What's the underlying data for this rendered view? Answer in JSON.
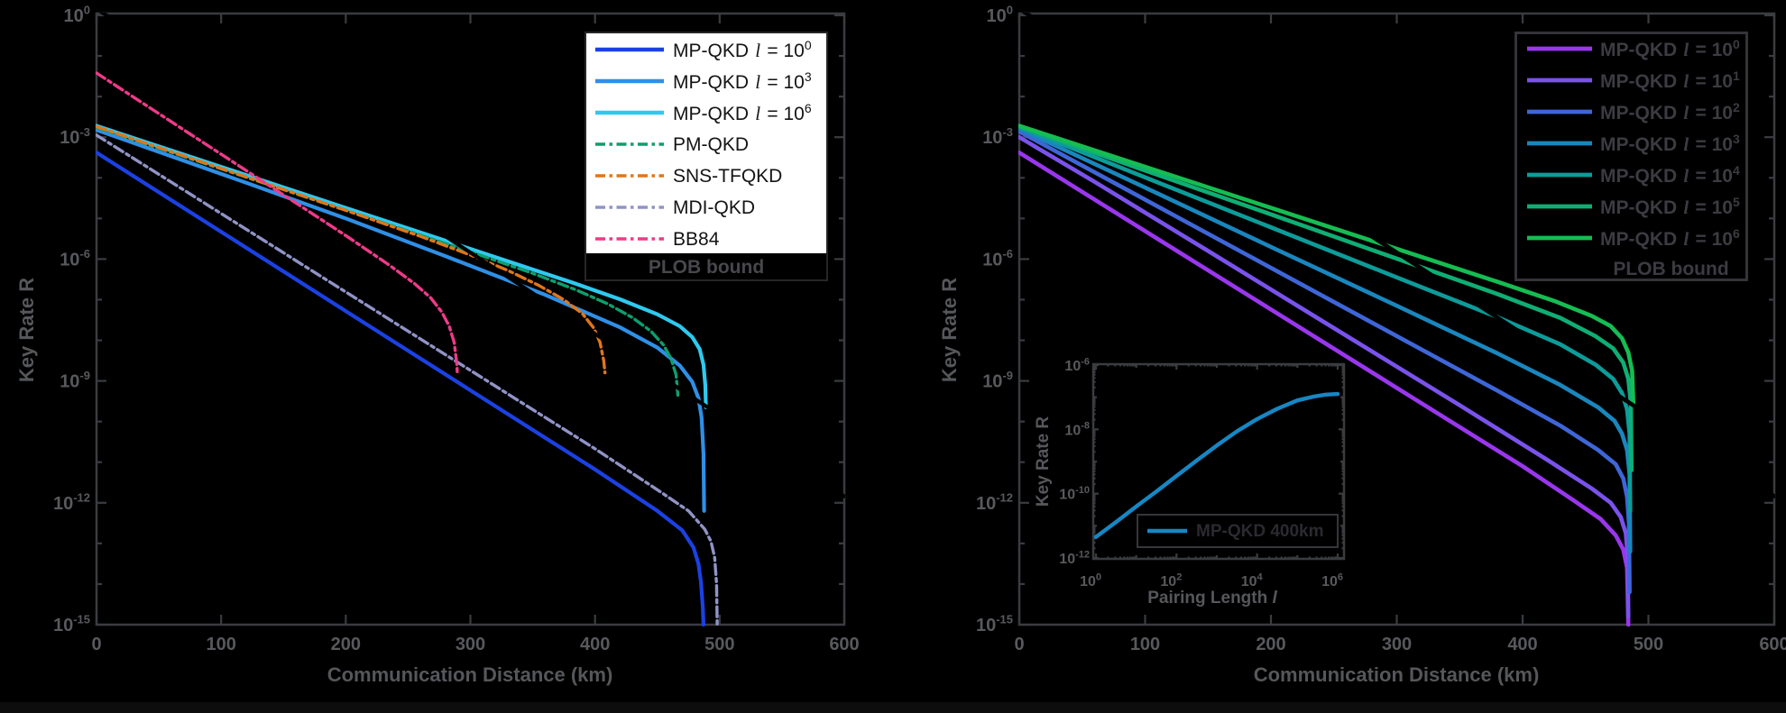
{
  "styles": {
    "background": "#000000",
    "frame_color": "#3a3c40",
    "tick_label_color": "#58595d",
    "axis_label_color": "#56575b",
    "legend_left_bg": "#ffffff",
    "legend_left_text": "#141414",
    "legend_dark_text": "#3b3b42",
    "legend_border_dark": "#333338",
    "plob_text_color": "#47474d"
  },
  "chart_data": [
    {
      "type": "line",
      "id": "left",
      "xlabel": "Communication Distance (km)",
      "ylabel": "Key Rate R",
      "xlim": [
        0,
        600
      ],
      "x_ticks": [
        0,
        100,
        200,
        300,
        400,
        500,
        600
      ],
      "y_scale": "log",
      "ylim_exp": [
        -15,
        0
      ],
      "y_tick_exponents": [
        0,
        -3,
        -6,
        -9,
        -12,
        -15
      ],
      "legend_position": "top-right",
      "series": [
        {
          "label": "MP-QKD",
          "lvar": "l",
          "exp": "0",
          "color": "#1b41e3",
          "style": "solid",
          "points": [
            [
              0,
              -3.38
            ],
            [
              100,
              -5.33
            ],
            [
              200,
              -7.28
            ],
            [
              300,
              -9.23
            ],
            [
              400,
              -11.18
            ],
            [
              450,
              -12.2
            ],
            [
              470,
              -12.68
            ],
            [
              479,
              -13.1
            ],
            [
              483,
              -13.5
            ],
            [
              485,
              -13.95
            ],
            [
              486.5,
              -14.6
            ],
            [
              487,
              -15
            ]
          ]
        },
        {
          "label": "MP-QKD",
          "lvar": "l",
          "exp": "3",
          "color": "#2f8fe6",
          "style": "solid",
          "points": [
            [
              0,
              -2.82
            ],
            [
              60,
              -3.47
            ],
            [
              120,
              -4.12
            ],
            [
              200,
              -5.0
            ],
            [
              280,
              -5.93
            ],
            [
              360,
              -6.88
            ],
            [
              420,
              -7.68
            ],
            [
              450,
              -8.18
            ],
            [
              468,
              -8.62
            ],
            [
              478,
              -9.02
            ],
            [
              483,
              -9.42
            ],
            [
              485.5,
              -9.9
            ],
            [
              487,
              -10.8
            ],
            [
              487.5,
              -12.2
            ]
          ]
        },
        {
          "label": "MP-QKD",
          "lvar": "l",
          "exp": "6",
          "color": "#2fc9ef",
          "style": "solid",
          "points": [
            [
              0,
              -2.72
            ],
            [
              100,
              -3.73
            ],
            [
              200,
              -4.74
            ],
            [
              300,
              -5.75
            ],
            [
              380,
              -6.56
            ],
            [
              420,
              -6.99
            ],
            [
              450,
              -7.36
            ],
            [
              468,
              -7.65
            ],
            [
              478,
              -7.92
            ],
            [
              484,
              -8.22
            ],
            [
              487,
              -8.6
            ],
            [
              488.5,
              -9.1
            ],
            [
              489,
              -9.65
            ]
          ]
        },
        {
          "label": "PM-QKD",
          "color": "#0f9e6d",
          "style": "dashdot",
          "points": [
            [
              0,
              -2.76
            ],
            [
              100,
              -3.78
            ],
            [
              200,
              -4.8
            ],
            [
              300,
              -5.82
            ],
            [
              350,
              -6.35
            ],
            [
              385,
              -6.76
            ],
            [
              410,
              -7.1
            ],
            [
              430,
              -7.44
            ],
            [
              445,
              -7.78
            ],
            [
              455,
              -8.12
            ],
            [
              461,
              -8.45
            ],
            [
              465,
              -8.85
            ],
            [
              466.5,
              -9.35
            ]
          ]
        },
        {
          "label": "SNS-TFQKD",
          "color": "#e0761b",
          "style": "dashdot",
          "points": [
            [
              0,
              -2.74
            ],
            [
              100,
              -3.77
            ],
            [
              200,
              -4.8
            ],
            [
              260,
              -5.44
            ],
            [
              300,
              -5.9
            ],
            [
              330,
              -6.28
            ],
            [
              355,
              -6.65
            ],
            [
              375,
              -7.0
            ],
            [
              390,
              -7.35
            ],
            [
              399,
              -7.7
            ],
            [
              404,
              -8.05
            ],
            [
              407,
              -8.5
            ],
            [
              408,
              -8.8
            ]
          ]
        },
        {
          "label": "MDI-QKD",
          "color": "#9093c6",
          "style": "dashdot",
          "points": [
            [
              0,
              -2.95
            ],
            [
              100,
              -4.88
            ],
            [
              200,
              -6.81
            ],
            [
              300,
              -8.74
            ],
            [
              400,
              -10.67
            ],
            [
              450,
              -11.68
            ],
            [
              475,
              -12.2
            ],
            [
              488,
              -12.65
            ],
            [
              493,
              -12.95
            ],
            [
              496,
              -13.35
            ],
            [
              497.5,
              -14.0
            ],
            [
              498,
              -15
            ]
          ]
        },
        {
          "label": "BB84",
          "color": "#ee3a88",
          "style": "dashdot",
          "points": [
            [
              0,
              -1.42
            ],
            [
              100,
              -3.42
            ],
            [
              200,
              -5.42
            ],
            [
              235,
              -6.15
            ],
            [
              255,
              -6.6
            ],
            [
              268,
              -6.95
            ],
            [
              277,
              -7.3
            ],
            [
              283,
              -7.65
            ],
            [
              287,
              -8.05
            ],
            [
              289,
              -8.55
            ],
            [
              289.5,
              -8.8
            ]
          ]
        },
        {
          "label": "PLOB bound",
          "color": "#000000",
          "style": "solid",
          "plob": true,
          "points": [
            [
              0,
              0.16
            ],
            [
              600,
              -11.84
            ]
          ]
        }
      ]
    },
    {
      "type": "line",
      "id": "right",
      "xlabel": "Communication Distance (km)",
      "ylabel": "Key Rate R",
      "xlim": [
        0,
        600
      ],
      "x_ticks": [
        0,
        100,
        200,
        300,
        400,
        500,
        600
      ],
      "y_scale": "log",
      "ylim_exp": [
        -15,
        0
      ],
      "y_tick_exponents": [
        0,
        -3,
        -6,
        -9,
        -12,
        -15
      ],
      "legend_position": "top-right",
      "series": [
        {
          "label": "MP-QKD",
          "lvar": "l",
          "exp": "0",
          "color": "#9a36ee",
          "style": "solid",
          "points": [
            [
              0,
              -3.38
            ],
            [
              100,
              -5.31
            ],
            [
              200,
              -7.24
            ],
            [
              300,
              -9.17
            ],
            [
              400,
              -11.1
            ],
            [
              440,
              -11.93
            ],
            [
              462,
              -12.4
            ],
            [
              474,
              -12.8
            ],
            [
              480,
              -13.15
            ],
            [
              483,
              -13.6
            ],
            [
              484,
              -15
            ]
          ]
        },
        {
          "label": "MP-QKD",
          "lvar": "l",
          "exp": "1",
          "color": "#7a52ec",
          "style": "solid",
          "points": [
            [
              0,
              -3.0
            ],
            [
              60,
              -4.1
            ],
            [
              150,
              -5.8
            ],
            [
              250,
              -7.7
            ],
            [
              350,
              -9.6
            ],
            [
              420,
              -10.95
            ],
            [
              455,
              -11.65
            ],
            [
              470,
              -12.0
            ],
            [
              478,
              -12.35
            ],
            [
              482,
              -12.75
            ],
            [
              483.5,
              -13.3
            ],
            [
              484,
              -14.8
            ]
          ]
        },
        {
          "label": "MP-QKD",
          "lvar": "l",
          "exp": "2",
          "color": "#3e66d8",
          "style": "solid",
          "points": [
            [
              0,
              -2.86
            ],
            [
              80,
              -4.2
            ],
            [
              180,
              -5.88
            ],
            [
              280,
              -7.56
            ],
            [
              380,
              -9.24
            ],
            [
              430,
              -10.1
            ],
            [
              460,
              -10.7
            ],
            [
              474,
              -11.05
            ],
            [
              480,
              -11.4
            ],
            [
              483,
              -11.85
            ],
            [
              484.5,
              -12.5
            ],
            [
              485,
              -14.2
            ]
          ]
        },
        {
          "label": "MP-QKD",
          "lvar": "l",
          "exp": "3",
          "color": "#1a86be",
          "style": "solid",
          "points": [
            [
              0,
              -2.79
            ],
            [
              100,
              -4.24
            ],
            [
              200,
              -5.7
            ],
            [
              300,
              -7.15
            ],
            [
              380,
              -8.32
            ],
            [
              430,
              -9.1
            ],
            [
              460,
              -9.65
            ],
            [
              473,
              -9.98
            ],
            [
              479,
              -10.3
            ],
            [
              483,
              -10.7
            ],
            [
              485,
              -11.3
            ],
            [
              485.5,
              -13.2
            ]
          ]
        },
        {
          "label": "MP-QKD",
          "lvar": "l",
          "exp": "4",
          "color": "#0d9c9a",
          "style": "solid",
          "points": [
            [
              0,
              -2.75
            ],
            [
              100,
              -3.99
            ],
            [
              200,
              -5.22
            ],
            [
              300,
              -6.45
            ],
            [
              380,
              -7.43
            ],
            [
              430,
              -8.1
            ],
            [
              458,
              -8.6
            ],
            [
              472,
              -8.95
            ],
            [
              479,
              -9.3
            ],
            [
              483,
              -9.7
            ],
            [
              485,
              -10.3
            ],
            [
              485.5,
              -12.2
            ]
          ]
        },
        {
          "label": "MP-QKD",
          "lvar": "l",
          "exp": "5",
          "color": "#0fae74",
          "style": "solid",
          "points": [
            [
              0,
              -2.73
            ],
            [
              100,
              -3.82
            ],
            [
              200,
              -4.9
            ],
            [
              300,
              -5.99
            ],
            [
              380,
              -6.86
            ],
            [
              430,
              -7.45
            ],
            [
              458,
              -7.9
            ],
            [
              472,
              -8.2
            ],
            [
              480,
              -8.55
            ],
            [
              484,
              -8.95
            ],
            [
              486,
              -9.55
            ],
            [
              486.5,
              -11.2
            ]
          ]
        },
        {
          "label": "MP-QKD",
          "lvar": "l",
          "exp": "6",
          "color": "#15bd52",
          "style": "solid",
          "points": [
            [
              0,
              -2.72
            ],
            [
              100,
              -3.73
            ],
            [
              200,
              -4.74
            ],
            [
              300,
              -5.75
            ],
            [
              380,
              -6.56
            ],
            [
              425,
              -7.03
            ],
            [
              455,
              -7.4
            ],
            [
              470,
              -7.65
            ],
            [
              479,
              -7.95
            ],
            [
              484,
              -8.3
            ],
            [
              487,
              -8.75
            ],
            [
              488,
              -9.6
            ]
          ]
        },
        {
          "label": "PLOB bound",
          "color": "#000000",
          "style": "solid",
          "plob": true,
          "points": [
            [
              0,
              0.16
            ],
            [
              600,
              -11.84
            ]
          ]
        }
      ]
    },
    {
      "type": "line",
      "id": "inset",
      "xlabel": "Pairing Length l",
      "xlabel_text": "Pairing Length",
      "xlabel_var": "l",
      "ylabel": "Key Rate R",
      "x_scale": "log",
      "xlim_exp": [
        0,
        6
      ],
      "x_tick_exponents": [
        0,
        2,
        4,
        6
      ],
      "y_scale": "log",
      "ylim_exp": [
        -12,
        -6
      ],
      "y_tick_exponents": [
        -6,
        -8,
        -10,
        -12
      ],
      "legend_position": "bottom-right",
      "series": [
        {
          "label": "MP-QKD 400km",
          "color": "#1787c4",
          "style": "solid",
          "points": [
            [
              0,
              -11.35
            ],
            [
              0.5,
              -10.88
            ],
            [
              1,
              -10.4
            ],
            [
              1.5,
              -9.93
            ],
            [
              2,
              -9.45
            ],
            [
              2.5,
              -8.97
            ],
            [
              3,
              -8.5
            ],
            [
              3.5,
              -8.06
            ],
            [
              4,
              -7.68
            ],
            [
              4.5,
              -7.36
            ],
            [
              5,
              -7.1
            ],
            [
              5.4,
              -6.98
            ],
            [
              5.7,
              -6.92
            ],
            [
              6,
              -6.9
            ]
          ]
        }
      ]
    }
  ]
}
